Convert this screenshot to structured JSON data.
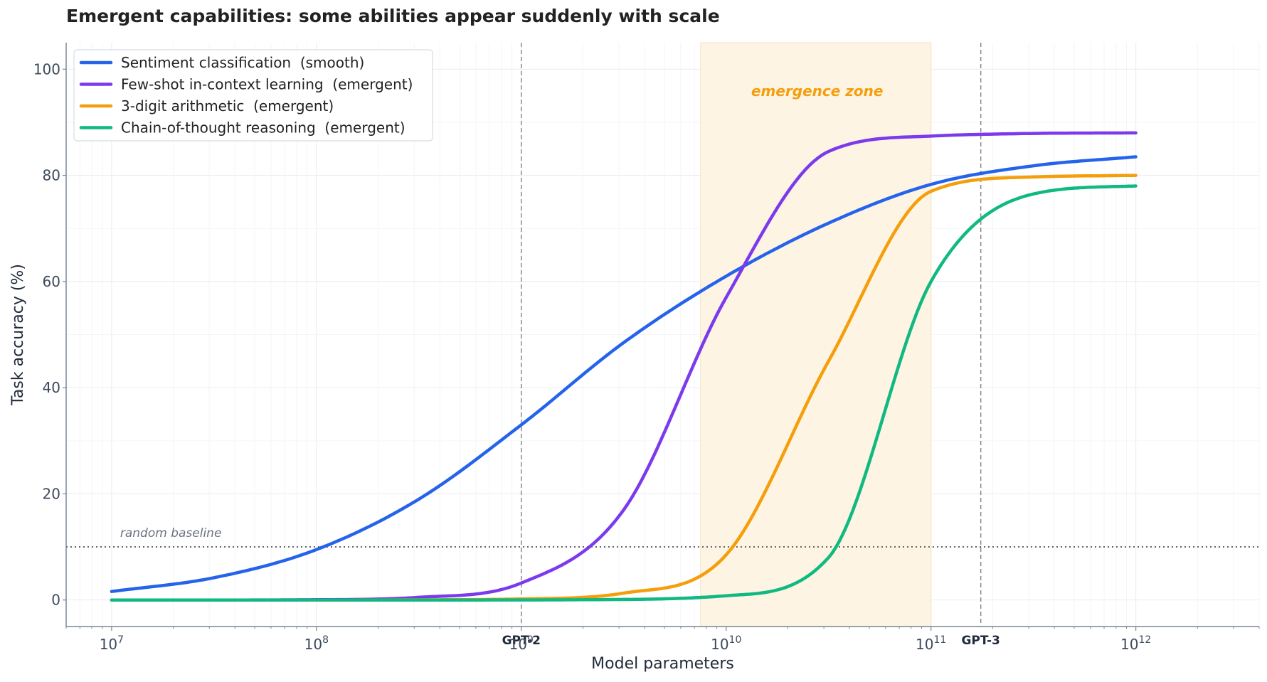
{
  "chart_data": {
    "type": "line",
    "title": "Emergent capabilities: some abilities appear suddenly with scale",
    "xlabel": "Model parameters",
    "ylabel": "Task accuracy (%)",
    "x_scale": "log",
    "xlim": [
      6000000,
      4000000000000
    ],
    "ylim": [
      -5,
      105
    ],
    "x_ticks": [
      {
        "value": 10000000,
        "base": "10",
        "exp": "7"
      },
      {
        "value": 100000000,
        "base": "10",
        "exp": "8"
      },
      {
        "value": 1000000000,
        "base": "10",
        "exp": "9"
      },
      {
        "value": 10000000000,
        "base": "10",
        "exp": "10"
      },
      {
        "value": 100000000000,
        "base": "10",
        "exp": "11"
      },
      {
        "value": 1000000000000,
        "base": "10",
        "exp": "12"
      }
    ],
    "y_ticks": [
      "0",
      "20",
      "40",
      "60",
      "80",
      "100"
    ],
    "grid": true,
    "legend_position": "top-left",
    "x": [
      10000000,
      31622777,
      100000000,
      316227766,
      1000000000,
      3162277660,
      10000000000,
      31622776602,
      100000000000,
      316227766017,
      1000000000000
    ],
    "series": [
      {
        "name": "Sentiment classification  (smooth)",
        "color": "#2563eb",
        "values": [
          1.6,
          4.2,
          9.5,
          19,
          33,
          48.5,
          61,
          71,
          78.3,
          81.8,
          83.5
        ]
      },
      {
        "name": "Few-shot in-context learning  (emergent)",
        "color": "#7c3aed",
        "values": [
          0,
          0,
          0.05,
          0.5,
          3.2,
          17,
          57,
          84.5,
          87.4,
          87.9,
          88
        ]
      },
      {
        "name": "3-digit arithmetic  (emergent)",
        "color": "#f59e0b",
        "values": [
          0,
          0,
          0,
          0.03,
          0.2,
          1.3,
          8.5,
          45,
          77,
          79.7,
          80
        ]
      },
      {
        "name": "Chain-of-thought reasoning  (emergent)",
        "color": "#10b981",
        "values": [
          0,
          0,
          0,
          0,
          0.01,
          0.1,
          0.8,
          8,
          60,
          76.5,
          78
        ]
      }
    ],
    "reference_lines": [
      {
        "label": "GPT-2",
        "x": 1000000000
      },
      {
        "label": "GPT-3",
        "x": 175000000000
      }
    ],
    "baseline": {
      "label": "random baseline",
      "y": 10
    },
    "shaded_region": {
      "label": "emergence zone",
      "x_from": 7500000000,
      "x_to": 100000000000,
      "color": "#fdf4e3"
    }
  }
}
